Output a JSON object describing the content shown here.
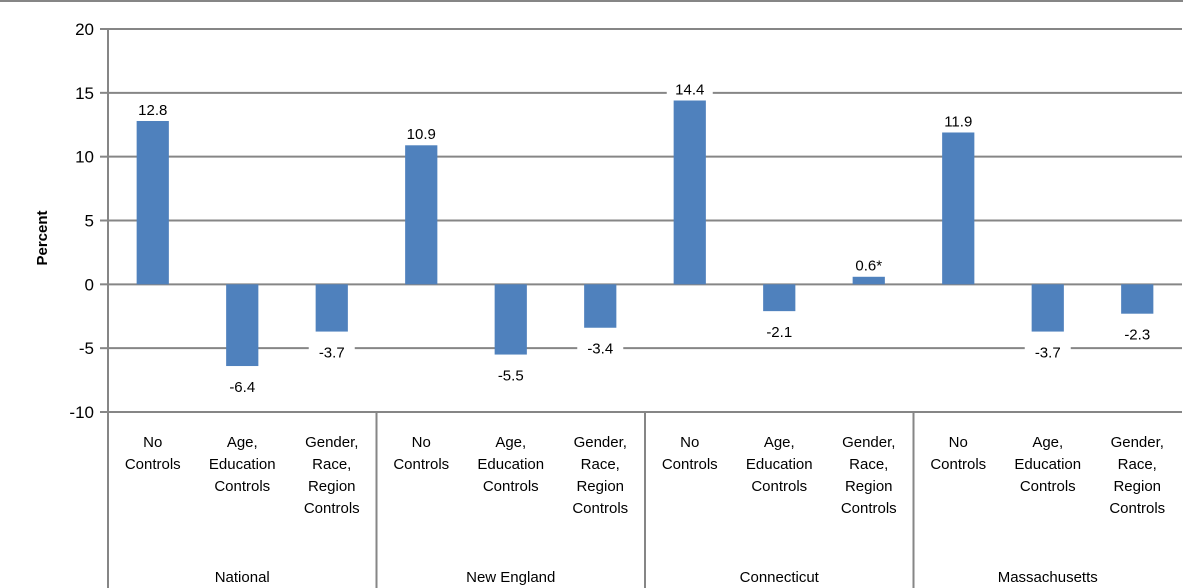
{
  "chart_data": {
    "type": "bar",
    "ylabel": "Percent",
    "xlabel": "",
    "title": "",
    "ylim": [
      -10,
      20
    ],
    "yticks": [
      "20",
      "15",
      "10",
      "5",
      "0",
      "-5",
      "-10"
    ],
    "grid": true,
    "legend": "none",
    "bar_color": "#4f81bd",
    "groups": [
      {
        "name": "National",
        "categories": [
          {
            "lines": [
              "No",
              "Controls"
            ]
          },
          {
            "lines": [
              "Age,",
              "Education",
              "Controls"
            ]
          },
          {
            "lines": [
              "Gender,",
              "Race,",
              "Region",
              "Controls"
            ]
          }
        ],
        "values": [
          12.8,
          -6.4,
          -3.7
        ],
        "labels": [
          "12.8",
          "-6.4",
          "-3.7"
        ]
      },
      {
        "name": "New England",
        "categories": [
          {
            "lines": [
              "No",
              "Controls"
            ]
          },
          {
            "lines": [
              "Age,",
              "Education",
              "Controls"
            ]
          },
          {
            "lines": [
              "Gender,",
              "Race,",
              "Region",
              "Controls"
            ]
          }
        ],
        "values": [
          10.9,
          -5.5,
          -3.4
        ],
        "labels": [
          "10.9",
          "-5.5",
          "-3.4"
        ]
      },
      {
        "name": "Connecticut",
        "categories": [
          {
            "lines": [
              "No",
              "Controls"
            ]
          },
          {
            "lines": [
              "Age,",
              "Education",
              "Controls"
            ]
          },
          {
            "lines": [
              "Gender,",
              "Race,",
              "Region",
              "Controls"
            ]
          }
        ],
        "values": [
          14.4,
          -2.1,
          0.6
        ],
        "labels": [
          "14.4",
          "-2.1",
          "0.6*"
        ]
      },
      {
        "name": "Massachusetts",
        "categories": [
          {
            "lines": [
              "No",
              "Controls"
            ]
          },
          {
            "lines": [
              "Age,",
              "Education",
              "Controls"
            ]
          },
          {
            "lines": [
              "Gender,",
              "Race,",
              "Region",
              "Controls"
            ]
          }
        ],
        "values": [
          11.9,
          -3.7,
          -2.3
        ],
        "labels": [
          "11.9",
          "-3.7",
          "-2.3"
        ]
      }
    ]
  }
}
